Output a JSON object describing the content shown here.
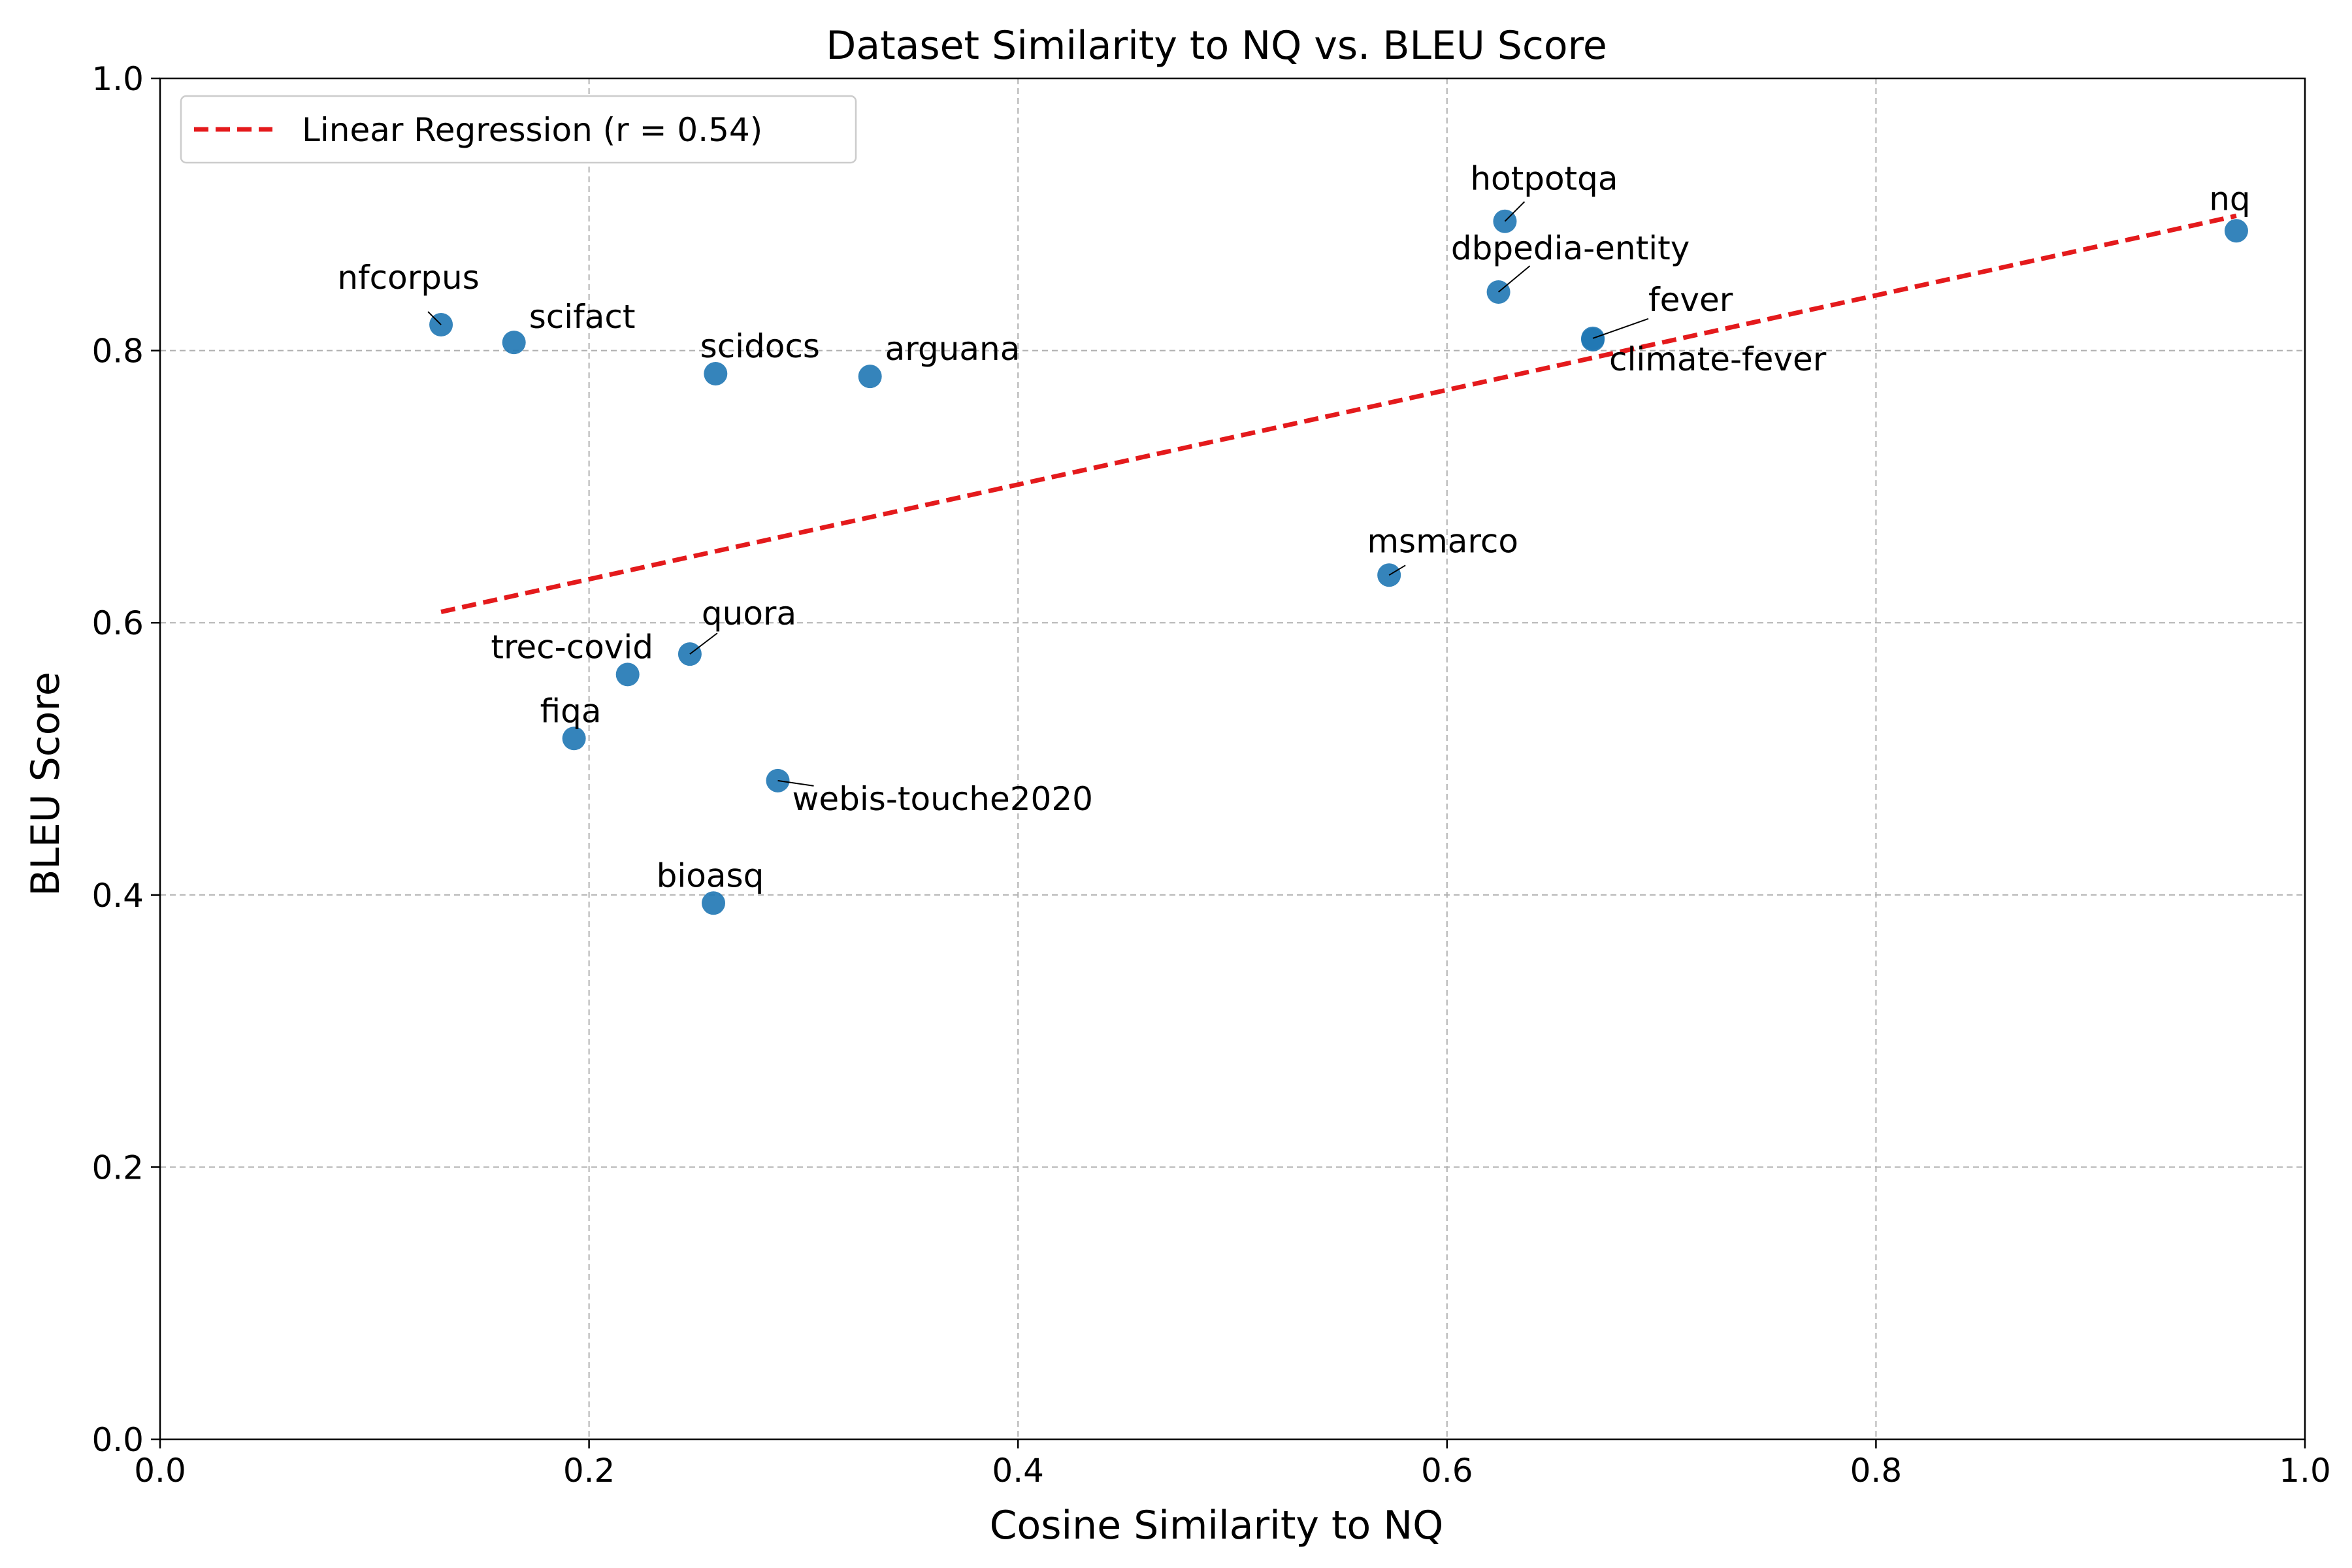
{
  "chart_data": {
    "type": "scatter",
    "title": "Dataset Similarity to NQ vs. BLEU Score",
    "xlabel": "Cosine Similarity to NQ",
    "ylabel": "BLEU Score",
    "xlim": [
      0.0,
      1.0
    ],
    "ylim": [
      0.0,
      1.0
    ],
    "xticks": [
      "0.0",
      "0.2",
      "0.4",
      "0.6",
      "0.8",
      "1.0"
    ],
    "yticks": [
      "0.0",
      "0.2",
      "0.4",
      "0.6",
      "0.8",
      "1.0"
    ],
    "grid": true,
    "legend_position": "top-left",
    "point_color": "#1f77b4",
    "regression_color": "#e41a1c",
    "points": [
      {
        "label": "nfcorpus",
        "x": 0.131,
        "y": 0.819
      },
      {
        "label": "scifact",
        "x": 0.165,
        "y": 0.806
      },
      {
        "label": "scidocs",
        "x": 0.259,
        "y": 0.783
      },
      {
        "label": "arguana",
        "x": 0.331,
        "y": 0.781
      },
      {
        "label": "hotpotqa",
        "x": 0.627,
        "y": 0.895
      },
      {
        "label": "dbpedia-entity",
        "x": 0.624,
        "y": 0.843
      },
      {
        "label": "fever",
        "x": 0.668,
        "y": 0.809
      },
      {
        "label": "climate-fever",
        "x": 0.668,
        "y": 0.808
      },
      {
        "label": "nq",
        "x": 0.968,
        "y": 0.888
      },
      {
        "label": "msmarco",
        "x": 0.573,
        "y": 0.635
      },
      {
        "label": "quora",
        "x": 0.247,
        "y": 0.577
      },
      {
        "label": "trec-covid",
        "x": 0.218,
        "y": 0.562
      },
      {
        "label": "fiqa",
        "x": 0.193,
        "y": 0.515
      },
      {
        "label": "webis-touche2020",
        "x": 0.288,
        "y": 0.484
      },
      {
        "label": "bioasq",
        "x": 0.258,
        "y": 0.394
      }
    ],
    "regression": {
      "name": "Linear Regression (r = 0.54)",
      "x": [
        0.131,
        0.968
      ],
      "y": [
        0.608,
        0.899
      ]
    }
  }
}
